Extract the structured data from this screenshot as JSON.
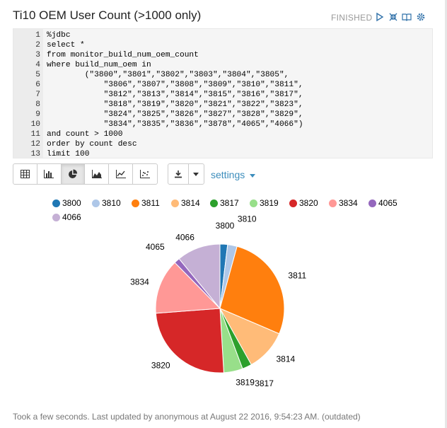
{
  "paragraph": {
    "title": "Ti10 OEM User Count (>1000 only)",
    "status": "FINISHED",
    "footer": "Took a few seconds. Last updated by anonymous at August 22 2016, 9:54:23 AM. (outdated)"
  },
  "header_icons": [
    "run-icon",
    "hide-editor-icon",
    "hide-output-icon",
    "settings-gear-icon"
  ],
  "editor": {
    "lines": [
      {
        "n": "1",
        "text": "%jdbc"
      },
      {
        "n": "2",
        "text": "select *"
      },
      {
        "n": "3",
        "text": "from monitor_build_num_oem_count"
      },
      {
        "n": "4",
        "text": "where build_num_oem in"
      },
      {
        "n": "5",
        "text": "        (\"3800\",\"3801\",\"3802\",\"3803\",\"3804\",\"3805\","
      },
      {
        "n": "6",
        "text": "            \"3806\",\"3807\",\"3808\",\"3809\",\"3810\",\"3811\","
      },
      {
        "n": "7",
        "text": "            \"3812\",\"3813\",\"3814\",\"3815\",\"3816\",\"3817\","
      },
      {
        "n": "8",
        "text": "            \"3818\",\"3819\",\"3820\",\"3821\",\"3822\",\"3823\","
      },
      {
        "n": "9",
        "text": "            \"3824\",\"3825\",\"3826\",\"3827\",\"3828\",\"3829\","
      },
      {
        "n": "10",
        "text": "            \"3834\",\"3835\",\"3836\",\"3878\",\"4065\",\"4066\")"
      },
      {
        "n": "11",
        "text": "and count > 1000"
      },
      {
        "n": "12",
        "text": "order by count desc"
      },
      {
        "n": "13",
        "text": "limit 100"
      }
    ]
  },
  "toolbar": {
    "buttons": [
      "table-icon",
      "bar-chart-icon",
      "pie-chart-icon",
      "area-chart-icon",
      "line-chart-icon",
      "scatter-chart-icon"
    ],
    "active": "pie-chart-icon",
    "settings_label": "settings"
  },
  "colors": {
    "3800": "#1f77b4",
    "3810": "#aec7e8",
    "3811": "#ff7f0e",
    "3814": "#ffbb78",
    "3817": "#2ca02c",
    "3819": "#98df8a",
    "3820": "#d62728",
    "3834": "#ff9896",
    "4065": "#9467bd",
    "4066": "#c5b0d5"
  },
  "chart_data": {
    "type": "pie",
    "categories": [
      "3800",
      "3810",
      "3811",
      "3814",
      "3817",
      "3819",
      "3820",
      "3834",
      "4065",
      "4066"
    ],
    "values": [
      2.0,
      2.5,
      28.5,
      11.0,
      2.5,
      5.0,
      26.0,
      14.5,
      1.5,
      11.5
    ],
    "legend": "top-left"
  }
}
